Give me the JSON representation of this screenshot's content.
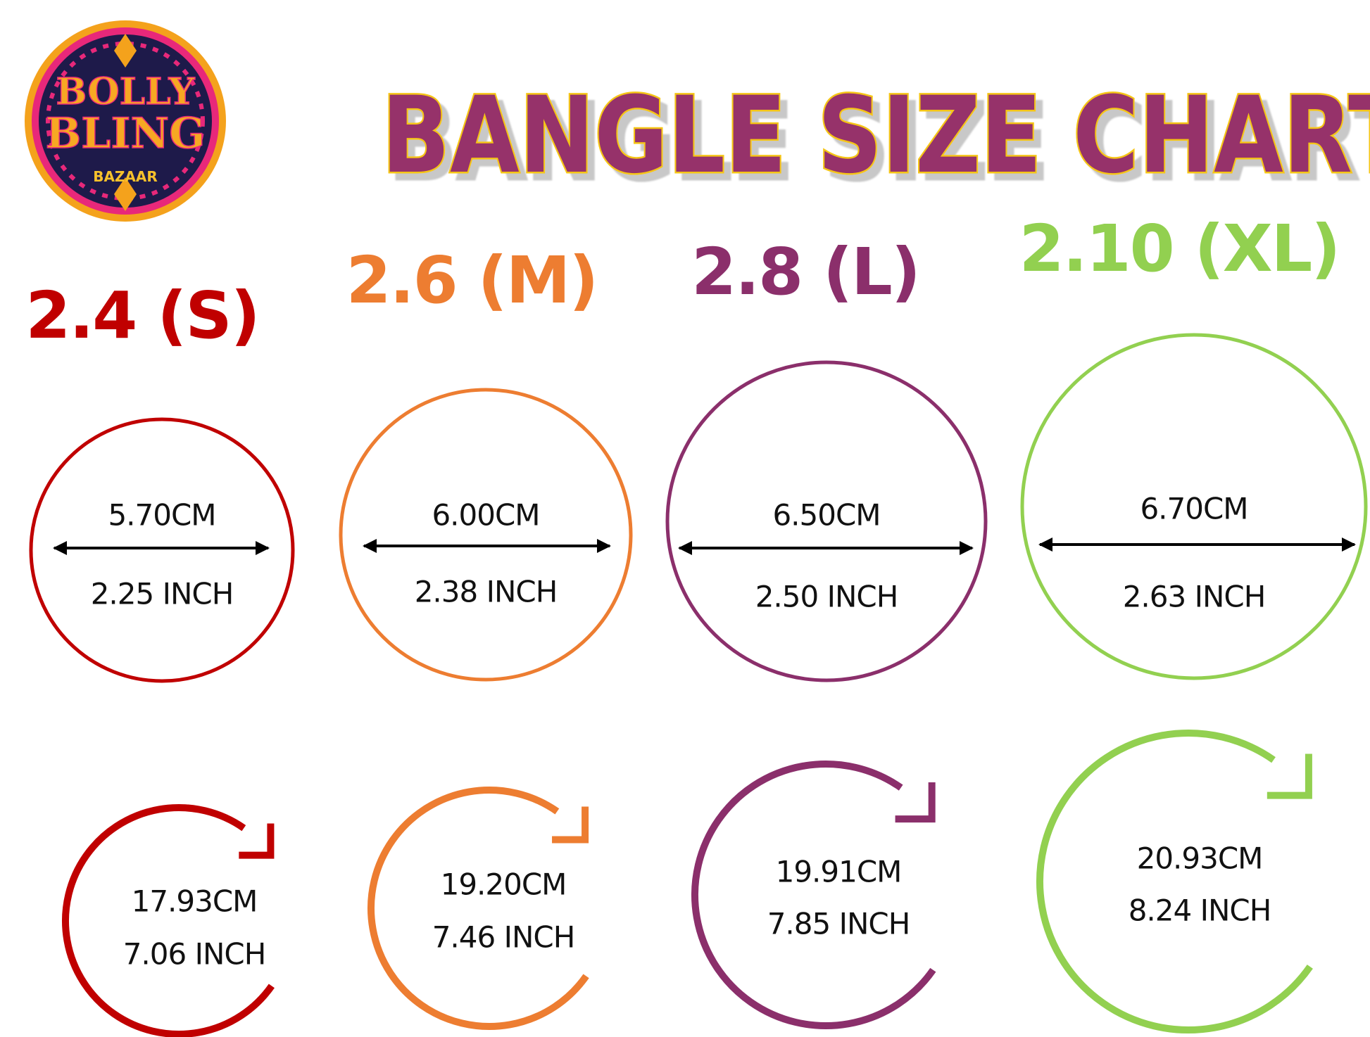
{
  "logo": {
    "line1": "BOLLY",
    "line2": "BLING",
    "line3": "BAZAAR"
  },
  "title": "BANGLE SIZE CHART",
  "colors": {
    "title_fill": "#96306a",
    "title_stroke": "#f5c518",
    "S": "#c00000",
    "M": "#ed7d31",
    "L": "#8b2f6b",
    "XL": "#92d050"
  },
  "sizes": [
    {
      "label": "2.4 (S)",
      "diameter_cm": "5.70CM",
      "diameter_inch": "2.25 INCH",
      "circumference_cm": "17.93CM",
      "circumference_inch": "7.06 INCH",
      "color": "#c00000"
    },
    {
      "label": "2.6 (M)",
      "diameter_cm": "6.00CM",
      "diameter_inch": "2.38 INCH",
      "circumference_cm": "19.20CM",
      "circumference_inch": "7.46 INCH",
      "color": "#ed7d31"
    },
    {
      "label": "2.8 (L)",
      "diameter_cm": "6.50CM",
      "diameter_inch": "2.50 INCH",
      "circumference_cm": "19.91CM",
      "circumference_inch": "7.85 INCH",
      "color": "#8b2f6b"
    },
    {
      "label": "2.10 (XL)",
      "diameter_cm": "6.70CM",
      "diameter_inch": "2.63 INCH",
      "circumference_cm": "20.93CM",
      "circumference_inch": "8.24 INCH",
      "color": "#92d050"
    }
  ]
}
